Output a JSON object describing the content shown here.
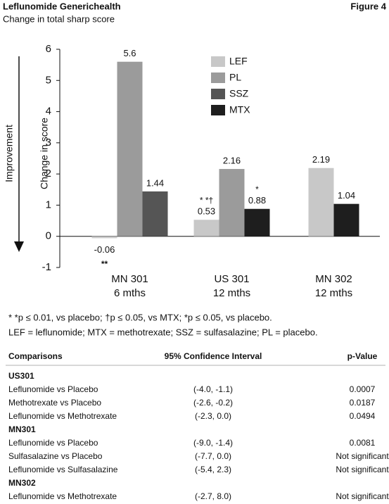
{
  "header": {
    "title": "Leflunomide Generichealth",
    "subtitle": "Change in total sharp score",
    "figure": "Figure 4"
  },
  "chart_data": {
    "type": "bar",
    "y_label": "Change in score",
    "arrow_label": "Improvement",
    "categories": [
      [
        "MN 301",
        "6 mths"
      ],
      [
        "US 301",
        "12 mths"
      ],
      [
        "MN 302",
        "12 mths"
      ]
    ],
    "series": [
      {
        "name": "LEF",
        "color": "#c8c8c8",
        "values": [
          -0.06,
          0.53,
          2.19
        ],
        "notes": [
          "**",
          "* *†",
          null
        ]
      },
      {
        "name": "PL",
        "color": "#9b9b9b",
        "values": [
          5.6,
          2.16,
          null
        ]
      },
      {
        "name": "SSZ",
        "color": "#555555",
        "values": [
          1.44,
          null,
          null
        ]
      },
      {
        "name": "MTX",
        "color": "#1e1e1e",
        "values": [
          null,
          0.88,
          1.04
        ],
        "notes": [
          null,
          "*",
          null
        ]
      }
    ],
    "ylim": [
      -1,
      6
    ],
    "yticks": [
      -1,
      0,
      1,
      2,
      3,
      4,
      5,
      6
    ],
    "grid": false,
    "legend": "upper center"
  },
  "footnotes": [
    "* *p ≤ 0.01, vs placebo;  †p ≤ 0.05, vs MTX; *p ≤ 0.05, vs placebo.",
    "LEF = leflunomide; MTX = methotrexate; SSZ = sulfasalazine; PL = placebo."
  ],
  "table": {
    "columns": [
      "Comparisons",
      "95% Confidence Interval",
      "p-Value"
    ],
    "groups": [
      {
        "name": "US301",
        "rows": [
          [
            "Leflunomide vs Placebo",
            "(-4.0, -1.1)",
            "0.0007"
          ],
          [
            "Methotrexate vs Placebo",
            "(-2.6, -0.2)",
            "0.0187"
          ],
          [
            "Leflunomide vs Methotrexate",
            "(-2.3, 0.0)",
            "0.0494"
          ]
        ]
      },
      {
        "name": "MN301",
        "rows": [
          [
            "Leflunomide vs Placebo",
            "(-9.0, -1.4)",
            "0.0081"
          ],
          [
            "Sulfasalazine vs Placebo",
            "(-7.7, 0.0)",
            "Not significant"
          ],
          [
            "Leflunomide vs Sulfasalazine",
            "(-5.4, 2.3)",
            "Not significant"
          ]
        ]
      },
      {
        "name": "MN302",
        "rows": [
          [
            "Leflunomide vs Methotrexate",
            "(-2.7, 8.0)",
            "Not significant"
          ]
        ]
      }
    ]
  }
}
